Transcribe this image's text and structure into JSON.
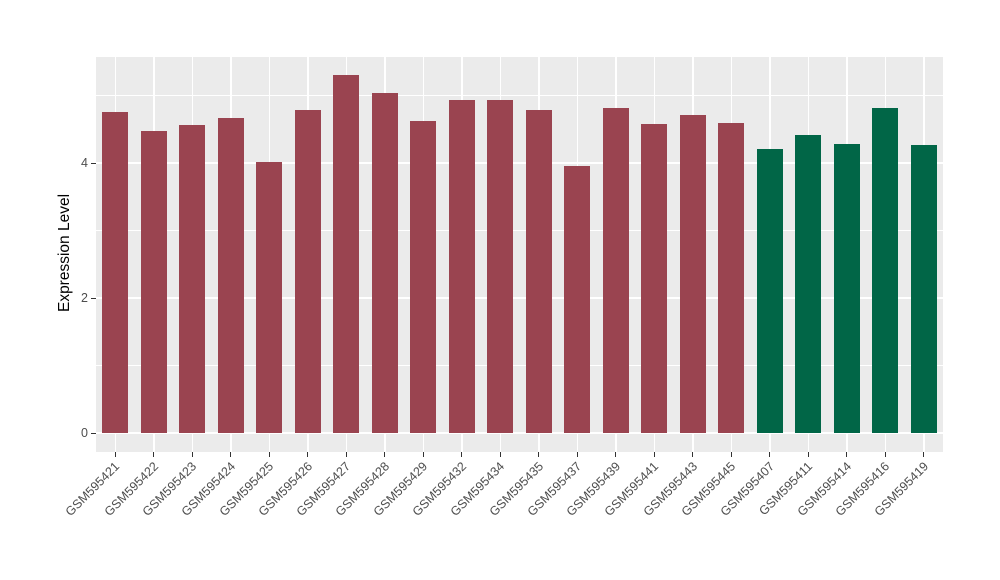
{
  "chart_data": {
    "type": "bar",
    "title": "",
    "xlabel": "",
    "ylabel": "Expression Level",
    "ylim": [
      -0.28,
      5.58
    ],
    "y_ticks": [
      0,
      2,
      4
    ],
    "y_minor_gridlines": [
      1,
      3,
      5
    ],
    "grid": true,
    "legend_position": "none",
    "panel_bg": "#EBEBEB",
    "grid_color": "#FFFFFF",
    "tick_label_color": "#4D4D4D",
    "groups": [
      {
        "name": "group-1",
        "color": "#9A4450"
      },
      {
        "name": "group-2",
        "color": "#016647"
      }
    ],
    "categories": [
      "GSM595421",
      "GSM595422",
      "GSM595423",
      "GSM595424",
      "GSM595425",
      "GSM595426",
      "GSM595427",
      "GSM595428",
      "GSM595429",
      "GSM595432",
      "GSM595434",
      "GSM595435",
      "GSM595437",
      "GSM595439",
      "GSM595441",
      "GSM595443",
      "GSM595445",
      "GSM595407",
      "GSM595411",
      "GSM595414",
      "GSM595416",
      "GSM595419"
    ],
    "values": [
      4.75,
      4.47,
      4.57,
      4.67,
      4.01,
      4.79,
      5.31,
      5.03,
      4.62,
      4.94,
      4.94,
      4.78,
      3.95,
      4.82,
      4.58,
      4.71,
      4.59,
      4.21,
      4.42,
      4.28,
      4.81,
      4.26
    ],
    "bar_groups": [
      0,
      0,
      0,
      0,
      0,
      0,
      0,
      0,
      0,
      0,
      0,
      0,
      0,
      0,
      0,
      0,
      0,
      1,
      1,
      1,
      1,
      1
    ]
  }
}
